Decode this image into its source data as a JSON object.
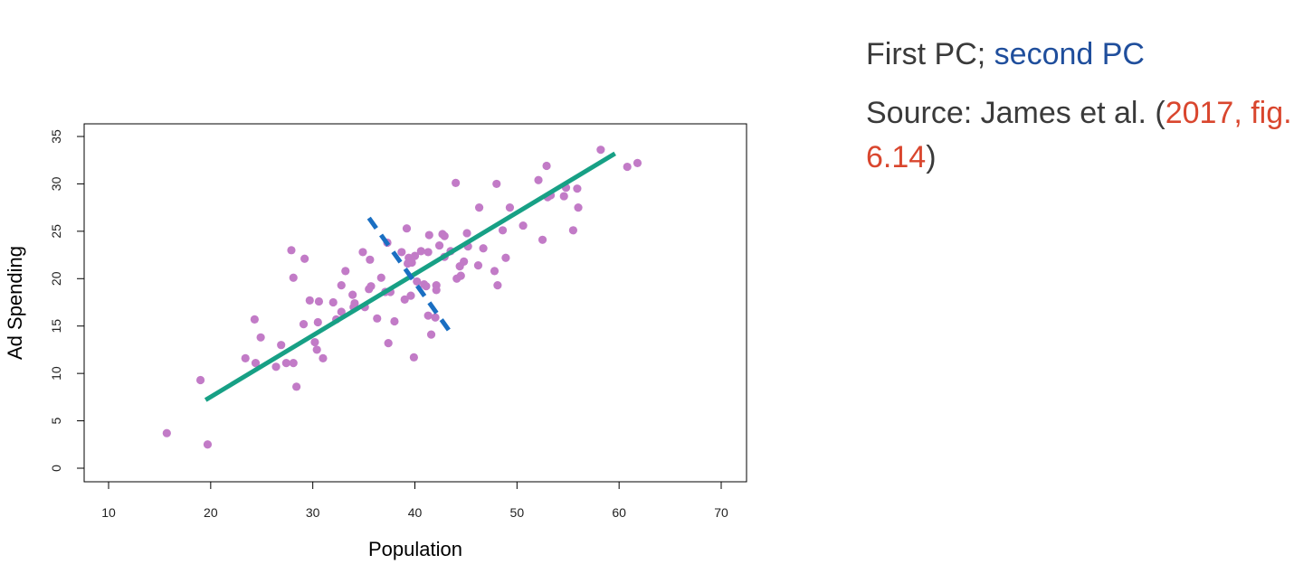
{
  "caption": {
    "line1_a": "First PC; ",
    "line1_b": "second PC",
    "line2_a": "Source: James et al. (",
    "line2_link": "2017, fig. 6.14",
    "line2_c": ")"
  },
  "chart_data": {
    "type": "scatter",
    "title": "",
    "xlabel": "Population",
    "ylabel": "Ad Spending",
    "xlim": [
      10,
      70
    ],
    "ylim": [
      0,
      35
    ],
    "x_ticks": [
      "10",
      "20",
      "30",
      "40",
      "50",
      "60",
      "70"
    ],
    "y_ticks": [
      "0",
      "5",
      "10",
      "15",
      "20",
      "25",
      "30",
      "35"
    ],
    "grid": false,
    "colors": {
      "points": "#c27bc7",
      "first_pc": "#17a085",
      "second_pc": "#1a6fc2"
    },
    "points": [
      [
        15.7,
        3.7
      ],
      [
        19.7,
        2.5
      ],
      [
        19.0,
        9.3
      ],
      [
        23.4,
        11.6
      ],
      [
        24.3,
        15.7
      ],
      [
        24.4,
        11.1
      ],
      [
        24.9,
        13.8
      ],
      [
        26.4,
        10.7
      ],
      [
        26.9,
        13.0
      ],
      [
        27.4,
        11.1
      ],
      [
        28.1,
        11.1
      ],
      [
        28.4,
        8.6
      ],
      [
        27.9,
        23.0
      ],
      [
        28.1,
        20.1
      ],
      [
        29.2,
        22.1
      ],
      [
        29.1,
        15.2
      ],
      [
        29.7,
        17.7
      ],
      [
        30.2,
        13.3
      ],
      [
        30.4,
        12.5
      ],
      [
        30.5,
        15.4
      ],
      [
        30.6,
        17.6
      ],
      [
        31.0,
        11.6
      ],
      [
        32.0,
        17.5
      ],
      [
        32.3,
        15.7
      ],
      [
        32.8,
        16.5
      ],
      [
        32.8,
        19.3
      ],
      [
        33.2,
        20.8
      ],
      [
        33.9,
        18.3
      ],
      [
        34.0,
        17.0
      ],
      [
        34.1,
        17.4
      ],
      [
        34.9,
        22.8
      ],
      [
        35.1,
        17.0
      ],
      [
        35.5,
        18.9
      ],
      [
        35.6,
        22.0
      ],
      [
        35.7,
        19.2
      ],
      [
        36.3,
        15.8
      ],
      [
        36.7,
        20.1
      ],
      [
        37.1,
        18.6
      ],
      [
        37.3,
        23.8
      ],
      [
        37.4,
        13.2
      ],
      [
        37.6,
        18.6
      ],
      [
        38.0,
        15.5
      ],
      [
        38.7,
        22.8
      ],
      [
        39.0,
        17.8
      ],
      [
        39.2,
        25.3
      ],
      [
        39.3,
        21.6
      ],
      [
        39.4,
        22.2
      ],
      [
        39.6,
        18.2
      ],
      [
        39.7,
        21.7
      ],
      [
        39.9,
        11.7
      ],
      [
        40.0,
        22.4
      ],
      [
        40.2,
        19.7
      ],
      [
        40.6,
        22.9
      ],
      [
        40.9,
        19.4
      ],
      [
        41.1,
        19.2
      ],
      [
        41.3,
        22.8
      ],
      [
        41.4,
        24.6
      ],
      [
        41.3,
        16.1
      ],
      [
        41.6,
        14.1
      ],
      [
        42.0,
        15.9
      ],
      [
        42.1,
        19.3
      ],
      [
        42.1,
        18.8
      ],
      [
        42.4,
        23.5
      ],
      [
        42.7,
        24.7
      ],
      [
        42.9,
        24.5
      ],
      [
        42.9,
        22.3
      ],
      [
        43.5,
        22.9
      ],
      [
        44.0,
        30.1
      ],
      [
        44.1,
        20.0
      ],
      [
        44.4,
        21.3
      ],
      [
        44.5,
        20.3
      ],
      [
        44.8,
        21.8
      ],
      [
        45.1,
        24.8
      ],
      [
        45.2,
        23.4
      ],
      [
        46.2,
        21.4
      ],
      [
        46.3,
        27.5
      ],
      [
        46.7,
        23.2
      ],
      [
        47.8,
        20.8
      ],
      [
        48.1,
        19.3
      ],
      [
        48.0,
        30.0
      ],
      [
        48.6,
        25.1
      ],
      [
        48.9,
        22.2
      ],
      [
        49.3,
        27.5
      ],
      [
        50.6,
        25.6
      ],
      [
        52.1,
        30.4
      ],
      [
        52.5,
        24.1
      ],
      [
        52.9,
        31.9
      ],
      [
        53.0,
        28.6
      ],
      [
        53.3,
        28.8
      ],
      [
        54.6,
        28.7
      ],
      [
        54.8,
        29.6
      ],
      [
        55.5,
        25.1
      ],
      [
        55.9,
        29.5
      ],
      [
        56.0,
        27.5
      ],
      [
        58.2,
        33.6
      ],
      [
        60.8,
        31.8
      ],
      [
        61.8,
        32.2
      ]
    ],
    "lines": [
      {
        "name": "First PC",
        "style": "solid",
        "x": [
          19.5,
          59.6
        ],
        "y": [
          7.2,
          33.2
        ]
      },
      {
        "name": "second PC",
        "style": "dashed",
        "x": [
          35.5,
          43.7
        ],
        "y": [
          26.4,
          14.0
        ]
      }
    ]
  }
}
